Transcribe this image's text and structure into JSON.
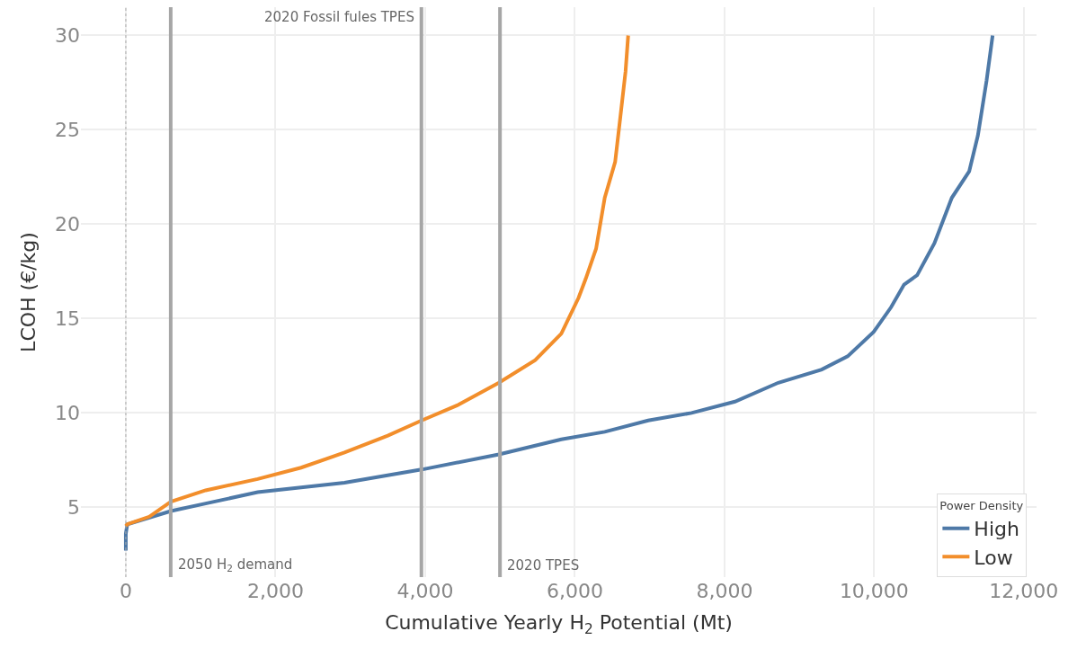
{
  "chart_data": {
    "type": "line",
    "xlabel": "Cumulative Yearly H$_{2}$ Potential (Mt)",
    "ylabel": "LCOH (€/kg)",
    "legend_title": "Power Density",
    "legend": "bottom right",
    "grid": true,
    "marker": "none",
    "line_style": "solid",
    "xlim": [
      -600,
      12170
    ],
    "ylim": [
      1.3,
      31.5
    ],
    "xticks": [
      {
        "value": 0,
        "label": "0"
      },
      {
        "value": 2000,
        "label": "2,000"
      },
      {
        "value": 4000,
        "label": "4,000"
      },
      {
        "value": 6000,
        "label": "6,000"
      },
      {
        "value": 8000,
        "label": "8,000"
      },
      {
        "value": 10000,
        "label": "10,000"
      },
      {
        "value": 12000,
        "label": "12,000"
      }
    ],
    "yticks": [
      5,
      10,
      15,
      20,
      25,
      30
    ],
    "ref_lines": [
      {
        "axis": "x",
        "value": 0,
        "color": "#aaaaaa",
        "line_style": "dotted"
      },
      {
        "axis": "x",
        "value": 600,
        "label": "2050 H$_{2}$ demand",
        "color": "#a6a6a6",
        "line_style": "solid"
      },
      {
        "axis": "x",
        "value": 3950,
        "label": "2020 Fossil fules TPES",
        "color": "#a6a6a6",
        "line_style": "solid"
      },
      {
        "axis": "x",
        "value": 5000,
        "label": "2020 TPES",
        "color": "#a6a6a6",
        "line_style": "solid"
      }
    ],
    "series": [
      {
        "name": "High",
        "color": "#4e79a7",
        "x": [
          0,
          0,
          20,
          603,
          1067,
          1762,
          2922,
          3953,
          4986,
          5820,
          6400,
          6980,
          7560,
          8140,
          8719,
          9299,
          9646,
          9994,
          10226,
          10400,
          10574,
          10806,
          11038,
          11270,
          11386,
          11502,
          11583
        ],
        "values": [
          2.7,
          3.6,
          4.1,
          4.8,
          5.2,
          5.8,
          6.3,
          7.0,
          7.8,
          8.6,
          9.0,
          9.6,
          10.0,
          10.6,
          11.6,
          12.3,
          13.0,
          14.3,
          15.6,
          16.8,
          17.3,
          19.0,
          21.4,
          22.8,
          24.7,
          27.6,
          30
        ]
      },
      {
        "name": "Low",
        "color": "#f28e2b",
        "x": [
          0,
          20,
          313,
          603,
          1067,
          1762,
          2342,
          2922,
          3501,
          3953,
          4429,
          4986,
          5470,
          5820,
          6050,
          6145,
          6284,
          6400,
          6539,
          6609,
          6678,
          6713
        ],
        "values": [
          4.0,
          4.1,
          4.5,
          5.3,
          5.9,
          6.5,
          7.1,
          7.9,
          8.8,
          9.6,
          10.4,
          11.6,
          12.8,
          14.2,
          16.1,
          17.1,
          18.7,
          21.4,
          23.3,
          25.7,
          28.1,
          30
        ]
      }
    ]
  }
}
